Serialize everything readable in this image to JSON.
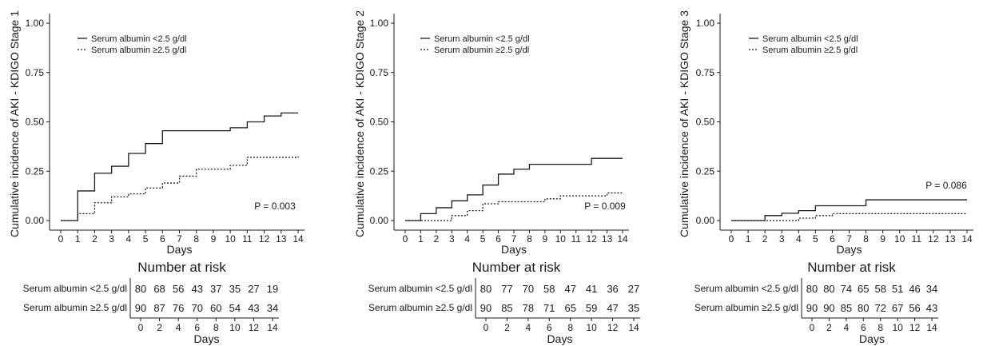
{
  "chart_data": [
    {
      "type": "line",
      "step": true,
      "ylabel": "Cumulative incidence of AKI - KDIGO Stage 1",
      "xlabel": "Days",
      "xlim": [
        0,
        14
      ],
      "ylim": [
        0,
        1
      ],
      "x_ticks": [
        0,
        1,
        2,
        3,
        4,
        5,
        6,
        7,
        8,
        9,
        10,
        11,
        12,
        13,
        14
      ],
      "y_ticks": [
        "0.00",
        "0.25",
        "0.50",
        "0.75",
        "1.00"
      ],
      "legend_position": "top-left",
      "grid": false,
      "series": [
        {
          "name": "Serum albumin <2.5 g/dl",
          "style": "solid",
          "x": [
            0,
            1,
            2,
            3,
            4,
            5,
            6,
            10,
            11,
            12,
            13,
            14
          ],
          "y": [
            0,
            0.15,
            0.24,
            0.275,
            0.34,
            0.39,
            0.455,
            0.47,
            0.5,
            0.53,
            0.545,
            0.545
          ]
        },
        {
          "name": "Serum albumin ≥2.5 g/dl",
          "style": "dotted",
          "x": [
            0,
            1,
            2,
            3,
            4,
            5,
            6,
            7,
            8,
            10,
            11,
            14
          ],
          "y": [
            0,
            0.035,
            0.09,
            0.12,
            0.135,
            0.165,
            0.19,
            0.225,
            0.26,
            0.28,
            0.32,
            0.325
          ]
        }
      ],
      "p_value": "P = 0.003",
      "risk_table": {
        "title": "Number at risk",
        "xlabel": "Days",
        "ticks": [
          0,
          2,
          4,
          6,
          8,
          10,
          12,
          14
        ],
        "rows": [
          {
            "label": "Serum albumin <2.5 g/dl",
            "values": [
              80,
              68,
              56,
              43,
              37,
              35,
              27,
              19
            ]
          },
          {
            "label": "Serum albumin ≥2.5 g/dl",
            "values": [
              90,
              87,
              76,
              70,
              60,
              54,
              43,
              34
            ]
          }
        ]
      }
    },
    {
      "type": "line",
      "step": true,
      "ylabel": "Cumulative incidence of AKI - KDIGO Stage 2",
      "xlabel": "Days",
      "xlim": [
        0,
        14
      ],
      "ylim": [
        0,
        1
      ],
      "x_ticks": [
        0,
        1,
        2,
        3,
        4,
        5,
        6,
        7,
        8,
        9,
        10,
        11,
        12,
        13,
        14
      ],
      "y_ticks": [
        "0.00",
        "0.25",
        "0.50",
        "0.75",
        "1.00"
      ],
      "legend_position": "top-left",
      "grid": false,
      "series": [
        {
          "name": "Serum albumin <2.5 g/dl",
          "style": "solid",
          "x": [
            0,
            1,
            2,
            3,
            4,
            5,
            6,
            7,
            8,
            12,
            14
          ],
          "y": [
            0,
            0.035,
            0.065,
            0.1,
            0.13,
            0.18,
            0.235,
            0.26,
            0.285,
            0.315,
            0.315
          ]
        },
        {
          "name": "Serum albumin ≥2.5 g/dl",
          "style": "dotted",
          "x": [
            0,
            3,
            4,
            5,
            6,
            9,
            10,
            13,
            14
          ],
          "y": [
            0,
            0.025,
            0.05,
            0.085,
            0.095,
            0.11,
            0.125,
            0.14,
            0.14
          ]
        }
      ],
      "p_value": "P = 0.009",
      "risk_table": {
        "title": "Number at risk",
        "xlabel": "Days",
        "ticks": [
          0,
          2,
          4,
          6,
          8,
          10,
          12,
          14
        ],
        "rows": [
          {
            "label": "Serum albumin <2.5 g/dl",
            "values": [
              80,
              77,
              70,
              58,
              47,
              41,
              36,
              27
            ]
          },
          {
            "label": "Serum albumin ≥2.5 g/dl",
            "values": [
              90,
              85,
              78,
              71,
              65,
              59,
              47,
              35
            ]
          }
        ]
      }
    },
    {
      "type": "line",
      "step": true,
      "ylabel": "Cumulative incidence of AKI - KDIGO Stage 3",
      "xlabel": "Days",
      "xlim": [
        0,
        14
      ],
      "ylim": [
        0,
        1
      ],
      "x_ticks": [
        0,
        1,
        2,
        3,
        4,
        5,
        6,
        7,
        8,
        9,
        10,
        11,
        12,
        13,
        14
      ],
      "y_ticks": [
        "0.00",
        "0.25",
        "0.50",
        "0.75",
        "1.00"
      ],
      "legend_position": "top-left",
      "grid": false,
      "series": [
        {
          "name": "Serum albumin <2.5 g/dl",
          "style": "solid",
          "x": [
            0,
            2,
            3,
            4,
            5,
            8,
            14
          ],
          "y": [
            0,
            0.025,
            0.037,
            0.05,
            0.075,
            0.105,
            0.105
          ]
        },
        {
          "name": "Serum albumin ≥2.5 g/dl",
          "style": "dotted",
          "x": [
            0,
            4,
            5,
            6,
            14
          ],
          "y": [
            0,
            0.012,
            0.025,
            0.035,
            0.035
          ]
        }
      ],
      "p_value": "P = 0.086",
      "risk_table": {
        "title": "Number at risk",
        "xlabel": "Days",
        "ticks": [
          0,
          2,
          4,
          6,
          8,
          10,
          12,
          14
        ],
        "rows": [
          {
            "label": "Serum albumin <2.5 g/dl",
            "values": [
              80,
              80,
              74,
              65,
              58,
              51,
              46,
              34
            ]
          },
          {
            "label": "Serum albumin ≥2.5 g/dl",
            "values": [
              90,
              90,
              85,
              80,
              72,
              67,
              56,
              43
            ]
          }
        ]
      }
    }
  ]
}
